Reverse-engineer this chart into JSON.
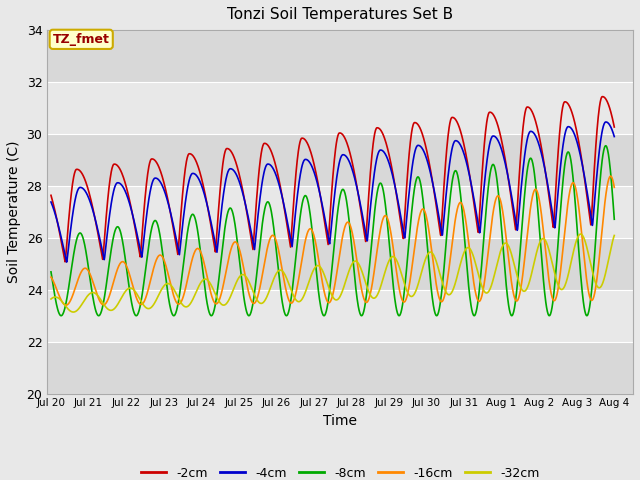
{
  "title": "Tonzi Soil Temperatures Set B",
  "xlabel": "Time",
  "ylabel": "Soil Temperature (C)",
  "ylim": [
    20,
    34
  ],
  "annotation_text": "TZ_fmet",
  "annotation_bg": "#ffffcc",
  "annotation_border": "#ccaa00",
  "annotation_text_color": "#990000",
  "lines": [
    {
      "label": "-2cm",
      "color": "#cc0000",
      "lw": 1.2
    },
    {
      "label": "-4cm",
      "color": "#0000cc",
      "lw": 1.2
    },
    {
      "label": "-8cm",
      "color": "#00aa00",
      "lw": 1.2
    },
    {
      "label": "-16cm",
      "color": "#ff8800",
      "lw": 1.2
    },
    {
      "label": "-32cm",
      "color": "#cccc00",
      "lw": 1.2
    }
  ],
  "fig_bg": "#e8e8e8",
  "plot_bg": "#f0f0f0",
  "grid_color": "#ffffff",
  "xtick_labels": [
    "Jul 20",
    "Jul 21",
    "Jul 22",
    "Jul 23",
    "Jul 24",
    "Jul 25",
    "Jul 26",
    "Jul 27",
    "Jul 28",
    "Jul 29",
    "Jul 30",
    "Jul 31",
    "Aug 1",
    "Aug 2",
    "Aug 3",
    "Aug 4"
  ],
  "ytick_vals": [
    20,
    22,
    24,
    26,
    28,
    30,
    32,
    34
  ]
}
